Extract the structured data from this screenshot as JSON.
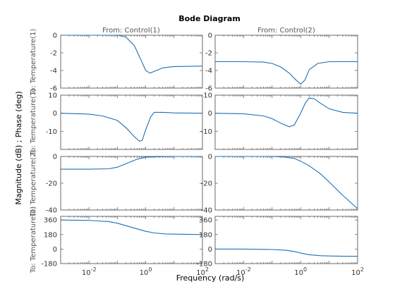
{
  "chart_data": {
    "type": "line",
    "title": "Bode Diagram",
    "xlabel": "Frequency  (rad/s)",
    "ylabel": "Magnitude (dB) ; Phase (deg)",
    "x_scale": "log",
    "xlim": [
      0.001,
      100
    ],
    "x_ticks": [
      0.01,
      1,
      100
    ],
    "x_tick_labels": [
      {
        "base": "10",
        "exp": "-2"
      },
      {
        "base": "10",
        "exp": "0"
      },
      {
        "base": "10",
        "exp": "2"
      }
    ],
    "line_color": "#1f6fb2",
    "columns": [
      "From: Control(1)",
      "From: Control(2)"
    ],
    "row_labels": [
      "To: Temperature(1)",
      "To: Temperature(1)",
      "To: Temperature(2)",
      "To: Temperature(2)"
    ],
    "rows": [
      {
        "quantity": "magnitude",
        "ylim": [
          -6,
          0
        ],
        "y_ticks": [
          0,
          -2,
          -4,
          -6
        ],
        "y_tick_labels": [
          "0",
          "-2",
          "-4",
          "-6"
        ],
        "series": [
          {
            "x": [
              0.001,
              0.01,
              0.1,
              0.2,
              0.4,
              0.7,
              1.0,
              1.4,
              2.0,
              4,
              10,
              100
            ],
            "y": [
              0,
              0,
              0,
              -0.2,
              -1.2,
              -2.9,
              -4.0,
              -4.3,
              -4.1,
              -3.7,
              -3.55,
              -3.5
            ]
          },
          {
            "x": [
              0.001,
              0.01,
              0.05,
              0.1,
              0.2,
              0.4,
              0.7,
              1.0,
              1.4,
              2.0,
              4,
              10,
              100
            ],
            "y": [
              -3.0,
              -3.0,
              -3.05,
              -3.2,
              -3.6,
              -4.3,
              -5.1,
              -5.55,
              -5.1,
              -3.9,
              -3.2,
              -3.0,
              -3.0
            ]
          }
        ]
      },
      {
        "quantity": "phase",
        "ylim": [
          -20,
          10
        ],
        "y_ticks": [
          10,
          0,
          -10
        ],
        "y_tick_labels": [
          "10",
          "0",
          "-10"
        ],
        "series": [
          {
            "x": [
              0.001,
              0.01,
              0.03,
              0.1,
              0.2,
              0.4,
              0.6,
              0.75,
              1.0,
              1.5,
              2.0,
              4,
              10,
              100
            ],
            "y": [
              0,
              -0.5,
              -1.5,
              -4,
              -8,
              -13,
              -15.5,
              -15,
              -9,
              -2,
              0.5,
              0.5,
              0.2,
              0
            ]
          },
          {
            "x": [
              0.001,
              0.01,
              0.05,
              0.1,
              0.2,
              0.4,
              0.6,
              1.0,
              1.5,
              2.0,
              3,
              5,
              10,
              30,
              100
            ],
            "y": [
              0,
              -0.3,
              -1.5,
              -3,
              -5.5,
              -7.5,
              -6.5,
              0,
              6,
              8.5,
              8,
              5.5,
              2.5,
              0.5,
              0
            ]
          }
        ]
      },
      {
        "quantity": "magnitude",
        "ylim": [
          -40,
          0
        ],
        "y_ticks": [
          0,
          -20,
          -40
        ],
        "y_tick_labels": [
          "0",
          "-20",
          "-40"
        ],
        "series": [
          {
            "x": [
              0.001,
              0.01,
              0.05,
              0.1,
              0.2,
              0.5,
              1,
              3,
              10,
              100
            ],
            "y": [
              -9.5,
              -9.5,
              -9.2,
              -8.0,
              -5.5,
              -2.0,
              -0.6,
              -0.2,
              0,
              0
            ]
          },
          {
            "x": [
              0.001,
              0.01,
              0.1,
              0.3,
              0.6,
              1,
              2,
              5,
              10,
              30,
              100
            ],
            "y": [
              0,
              0,
              0,
              -0.5,
              -1.5,
              -3.5,
              -7,
              -13,
              -19,
              -29,
              -39
            ]
          }
        ]
      },
      {
        "quantity": "phase",
        "ylim": [
          -180,
          405
        ],
        "y_ticks": [
          360,
          180,
          0,
          -180
        ],
        "y_tick_labels": [
          "360",
          "180",
          "0",
          "-180"
        ],
        "series": [
          {
            "x": [
              0.001,
              0.01,
              0.05,
              0.1,
              0.2,
              0.5,
              1,
              2,
              5,
              10,
              100
            ],
            "y": [
              360,
              355,
              340,
              320,
              290,
              250,
              220,
              200,
              188,
              185,
              180
            ]
          },
          {
            "x": [
              0.001,
              0.01,
              0.1,
              0.3,
              0.6,
              1,
              2,
              5,
              10,
              30,
              100
            ],
            "y": [
              0,
              0,
              -5,
              -15,
              -30,
              -50,
              -70,
              -82,
              -86,
              -89,
              -90
            ]
          }
        ]
      }
    ]
  }
}
